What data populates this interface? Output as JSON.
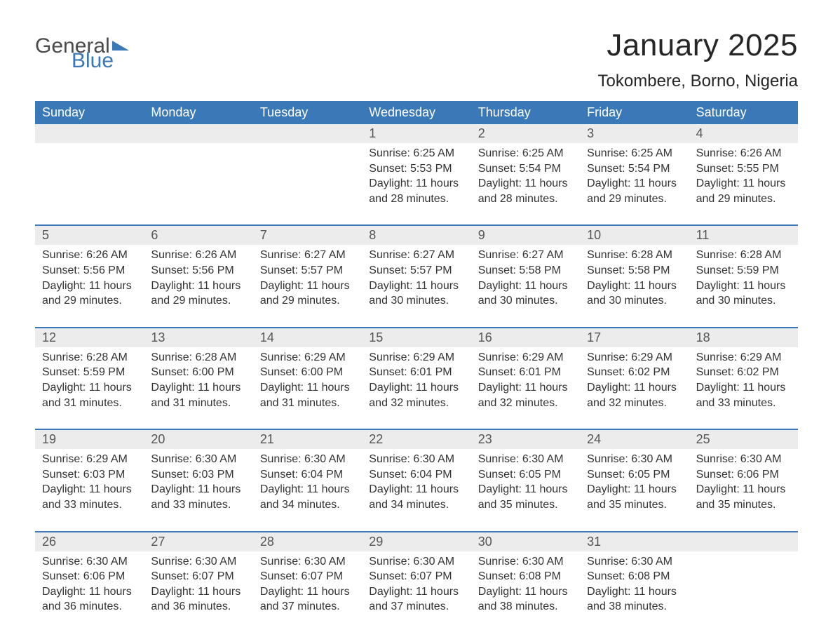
{
  "logo": {
    "part1": "General",
    "part2": "Blue"
  },
  "title": "January 2025",
  "location": "Tokombere, Borno, Nigeria",
  "colors": {
    "header_bg": "#3a78b8",
    "header_text": "#ffffff",
    "daynum_bg": "#ececec",
    "border": "#3a78b8",
    "body_text": "#333333",
    "daynum_text": "#555555",
    "logo_gray": "#4a4a4a",
    "logo_blue": "#3a78b8",
    "page_bg": "#ffffff"
  },
  "fonts": {
    "title_size": 44,
    "location_size": 24,
    "header_size": 18,
    "daynum_size": 18,
    "cell_size": 16,
    "logo_size": 30
  },
  "day_names": [
    "Sunday",
    "Monday",
    "Tuesday",
    "Wednesday",
    "Thursday",
    "Friday",
    "Saturday"
  ],
  "weeks": [
    [
      null,
      null,
      null,
      {
        "n": "1",
        "sunrise": "6:25 AM",
        "sunset": "5:53 PM",
        "dl_h": 11,
        "dl_m": 28
      },
      {
        "n": "2",
        "sunrise": "6:25 AM",
        "sunset": "5:54 PM",
        "dl_h": 11,
        "dl_m": 28
      },
      {
        "n": "3",
        "sunrise": "6:25 AM",
        "sunset": "5:54 PM",
        "dl_h": 11,
        "dl_m": 29
      },
      {
        "n": "4",
        "sunrise": "6:26 AM",
        "sunset": "5:55 PM",
        "dl_h": 11,
        "dl_m": 29
      }
    ],
    [
      {
        "n": "5",
        "sunrise": "6:26 AM",
        "sunset": "5:56 PM",
        "dl_h": 11,
        "dl_m": 29
      },
      {
        "n": "6",
        "sunrise": "6:26 AM",
        "sunset": "5:56 PM",
        "dl_h": 11,
        "dl_m": 29
      },
      {
        "n": "7",
        "sunrise": "6:27 AM",
        "sunset": "5:57 PM",
        "dl_h": 11,
        "dl_m": 29
      },
      {
        "n": "8",
        "sunrise": "6:27 AM",
        "sunset": "5:57 PM",
        "dl_h": 11,
        "dl_m": 30
      },
      {
        "n": "9",
        "sunrise": "6:27 AM",
        "sunset": "5:58 PM",
        "dl_h": 11,
        "dl_m": 30
      },
      {
        "n": "10",
        "sunrise": "6:28 AM",
        "sunset": "5:58 PM",
        "dl_h": 11,
        "dl_m": 30
      },
      {
        "n": "11",
        "sunrise": "6:28 AM",
        "sunset": "5:59 PM",
        "dl_h": 11,
        "dl_m": 30
      }
    ],
    [
      {
        "n": "12",
        "sunrise": "6:28 AM",
        "sunset": "5:59 PM",
        "dl_h": 11,
        "dl_m": 31
      },
      {
        "n": "13",
        "sunrise": "6:28 AM",
        "sunset": "6:00 PM",
        "dl_h": 11,
        "dl_m": 31
      },
      {
        "n": "14",
        "sunrise": "6:29 AM",
        "sunset": "6:00 PM",
        "dl_h": 11,
        "dl_m": 31
      },
      {
        "n": "15",
        "sunrise": "6:29 AM",
        "sunset": "6:01 PM",
        "dl_h": 11,
        "dl_m": 32
      },
      {
        "n": "16",
        "sunrise": "6:29 AM",
        "sunset": "6:01 PM",
        "dl_h": 11,
        "dl_m": 32
      },
      {
        "n": "17",
        "sunrise": "6:29 AM",
        "sunset": "6:02 PM",
        "dl_h": 11,
        "dl_m": 32
      },
      {
        "n": "18",
        "sunrise": "6:29 AM",
        "sunset": "6:02 PM",
        "dl_h": 11,
        "dl_m": 33
      }
    ],
    [
      {
        "n": "19",
        "sunrise": "6:29 AM",
        "sunset": "6:03 PM",
        "dl_h": 11,
        "dl_m": 33
      },
      {
        "n": "20",
        "sunrise": "6:30 AM",
        "sunset": "6:03 PM",
        "dl_h": 11,
        "dl_m": 33
      },
      {
        "n": "21",
        "sunrise": "6:30 AM",
        "sunset": "6:04 PM",
        "dl_h": 11,
        "dl_m": 34
      },
      {
        "n": "22",
        "sunrise": "6:30 AM",
        "sunset": "6:04 PM",
        "dl_h": 11,
        "dl_m": 34
      },
      {
        "n": "23",
        "sunrise": "6:30 AM",
        "sunset": "6:05 PM",
        "dl_h": 11,
        "dl_m": 35
      },
      {
        "n": "24",
        "sunrise": "6:30 AM",
        "sunset": "6:05 PM",
        "dl_h": 11,
        "dl_m": 35
      },
      {
        "n": "25",
        "sunrise": "6:30 AM",
        "sunset": "6:06 PM",
        "dl_h": 11,
        "dl_m": 35
      }
    ],
    [
      {
        "n": "26",
        "sunrise": "6:30 AM",
        "sunset": "6:06 PM",
        "dl_h": 11,
        "dl_m": 36
      },
      {
        "n": "27",
        "sunrise": "6:30 AM",
        "sunset": "6:07 PM",
        "dl_h": 11,
        "dl_m": 36
      },
      {
        "n": "28",
        "sunrise": "6:30 AM",
        "sunset": "6:07 PM",
        "dl_h": 11,
        "dl_m": 37
      },
      {
        "n": "29",
        "sunrise": "6:30 AM",
        "sunset": "6:07 PM",
        "dl_h": 11,
        "dl_m": 37
      },
      {
        "n": "30",
        "sunrise": "6:30 AM",
        "sunset": "6:08 PM",
        "dl_h": 11,
        "dl_m": 38
      },
      {
        "n": "31",
        "sunrise": "6:30 AM",
        "sunset": "6:08 PM",
        "dl_h": 11,
        "dl_m": 38
      },
      null
    ]
  ],
  "labels": {
    "sunrise": "Sunrise: ",
    "sunset": "Sunset: ",
    "daylight_prefix": "Daylight: ",
    "hours_word": " hours",
    "and_word": "and ",
    "minutes_word": " minutes."
  }
}
